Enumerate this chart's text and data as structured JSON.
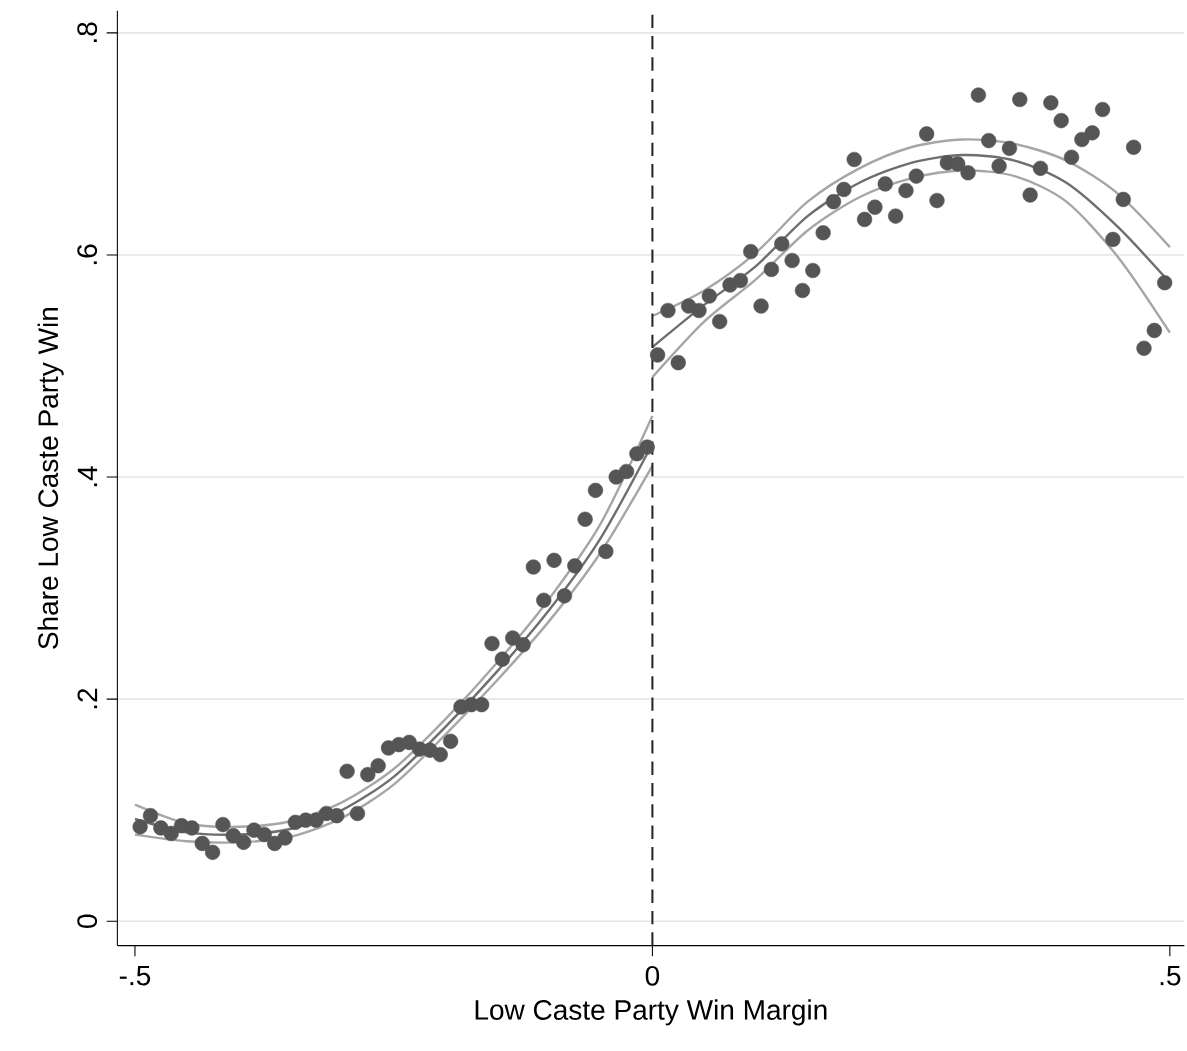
{
  "chart_data": {
    "type": "scatter",
    "xlabel": "Low Caste Party Win Margin",
    "ylabel": "Share Low Caste Party Win",
    "xlim": [
      -0.517,
      0.514
    ],
    "ylim": [
      -0.022,
      0.82
    ],
    "xticks": [
      {
        "value": -0.5,
        "label": "-.5"
      },
      0,
      {
        "value": 0.5,
        "label": ".5"
      }
    ],
    "yticks": [
      0,
      {
        "value": 0.2,
        "label": ".2"
      },
      {
        "value": 0.4,
        "label": ".4"
      },
      {
        "value": 0.6,
        "label": ".6"
      },
      {
        "value": 0.8,
        "label": ".8"
      }
    ],
    "grid": "y",
    "ref_lines": [
      {
        "axis": "x",
        "value": 0,
        "line_style": "dashed",
        "color": "#222222"
      }
    ],
    "series": [
      {
        "marker": "circle",
        "color": "#555555",
        "x": [
          -0.495,
          -0.485,
          -0.475,
          -0.465,
          -0.455,
          -0.445,
          -0.435,
          -0.425,
          -0.415,
          -0.405,
          -0.395,
          -0.385,
          -0.375,
          -0.365,
          -0.355,
          -0.345,
          -0.335,
          -0.325,
          -0.315,
          -0.305,
          -0.295,
          -0.285,
          -0.275,
          -0.265,
          -0.255,
          -0.245,
          -0.235,
          -0.225,
          -0.215,
          -0.205,
          -0.195,
          -0.185,
          -0.175,
          -0.165,
          -0.155,
          -0.145,
          -0.135,
          -0.125,
          -0.115,
          -0.105,
          -0.095,
          -0.085,
          -0.075,
          -0.065,
          -0.055,
          -0.045,
          -0.035,
          -0.025,
          -0.015,
          -0.005,
          0.005,
          0.015,
          0.025,
          0.035,
          0.045,
          0.055,
          0.065,
          0.075,
          0.085,
          0.095,
          0.105,
          0.115,
          0.125,
          0.135,
          0.145,
          0.155,
          0.165,
          0.175,
          0.185,
          0.195,
          0.205,
          0.215,
          0.225,
          0.235,
          0.245,
          0.255,
          0.265,
          0.275,
          0.285,
          0.295,
          0.305,
          0.315,
          0.325,
          0.335,
          0.345,
          0.355,
          0.365,
          0.375,
          0.385,
          0.395,
          0.405,
          0.415,
          0.425,
          0.435,
          0.445,
          0.455,
          0.465,
          0.475,
          0.485,
          0.495
        ],
        "values": [
          0.085,
          0.095,
          0.084,
          0.079,
          0.086,
          0.084,
          0.07,
          0.062,
          0.087,
          0.077,
          0.071,
          0.082,
          0.078,
          0.07,
          0.075,
          0.089,
          0.091,
          0.091,
          0.097,
          0.095,
          0.135,
          0.097,
          0.132,
          0.14,
          0.156,
          0.159,
          0.161,
          0.155,
          0.154,
          0.15,
          0.162,
          0.193,
          0.195,
          0.195,
          0.25,
          0.236,
          0.255,
          0.249,
          0.319,
          0.289,
          0.325,
          0.293,
          0.32,
          0.362,
          0.388,
          0.333,
          0.4,
          0.405,
          0.421,
          0.427,
          0.51,
          0.55,
          0.503,
          0.554,
          0.55,
          0.563,
          0.54,
          0.573,
          0.577,
          0.603,
          0.554,
          0.587,
          0.61,
          0.595,
          0.568,
          0.586,
          0.62,
          0.648,
          0.659,
          0.686,
          0.632,
          0.643,
          0.664,
          0.635,
          0.658,
          0.671,
          0.709,
          0.649,
          0.683,
          0.682,
          0.674,
          0.744,
          0.703,
          0.68,
          0.696,
          0.74,
          0.654,
          0.678,
          0.737,
          0.721,
          0.688,
          0.704,
          0.71,
          0.731,
          0.614,
          0.65,
          0.697,
          0.516,
          0.532,
          0.575
        ]
      },
      {
        "type": "line",
        "marker": "none",
        "color": "#6e6e6e",
        "x": [
          -0.5,
          -0.45,
          -0.4,
          -0.35,
          -0.3,
          -0.25,
          -0.2,
          -0.15,
          -0.1,
          -0.05,
          0
        ],
        "values": [
          0.092,
          0.08,
          0.078,
          0.083,
          0.1,
          0.13,
          0.175,
          0.225,
          0.28,
          0.345,
          0.43
        ]
      },
      {
        "type": "line",
        "marker": "none",
        "color": "#a6a6a6",
        "x": [
          -0.5,
          -0.45,
          -0.4,
          -0.35,
          -0.3,
          -0.25,
          -0.2,
          -0.15,
          -0.1,
          -0.05,
          0
        ],
        "values": [
          0.105,
          0.088,
          0.085,
          0.09,
          0.107,
          0.137,
          0.182,
          0.233,
          0.29,
          0.358,
          0.455
        ]
      },
      {
        "type": "line",
        "marker": "none",
        "color": "#a6a6a6",
        "x": [
          -0.5,
          -0.45,
          -0.4,
          -0.35,
          -0.3,
          -0.25,
          -0.2,
          -0.15,
          -0.1,
          -0.05,
          0
        ],
        "values": [
          0.078,
          0.072,
          0.071,
          0.076,
          0.093,
          0.123,
          0.168,
          0.217,
          0.27,
          0.332,
          0.41
        ]
      },
      {
        "type": "line",
        "marker": "none",
        "color": "#6e6e6e",
        "x": [
          0,
          0.05,
          0.1,
          0.15,
          0.2,
          0.25,
          0.3,
          0.35,
          0.4,
          0.45,
          0.5
        ],
        "values": [
          0.517,
          0.555,
          0.59,
          0.635,
          0.665,
          0.683,
          0.69,
          0.685,
          0.665,
          0.625,
          0.575
        ]
      },
      {
        "type": "line",
        "marker": "none",
        "color": "#a6a6a6",
        "x": [
          0,
          0.05,
          0.1,
          0.15,
          0.2,
          0.25,
          0.3,
          0.35,
          0.4,
          0.45,
          0.5
        ],
        "values": [
          0.545,
          0.568,
          0.602,
          0.648,
          0.678,
          0.697,
          0.704,
          0.7,
          0.685,
          0.655,
          0.607
        ]
      },
      {
        "type": "line",
        "marker": "none",
        "color": "#a6a6a6",
        "x": [
          0,
          0.05,
          0.1,
          0.15,
          0.2,
          0.25,
          0.3,
          0.35,
          0.4,
          0.45,
          0.5
        ],
        "values": [
          0.49,
          0.54,
          0.578,
          0.622,
          0.652,
          0.669,
          0.676,
          0.671,
          0.648,
          0.598,
          0.53
        ]
      }
    ]
  }
}
